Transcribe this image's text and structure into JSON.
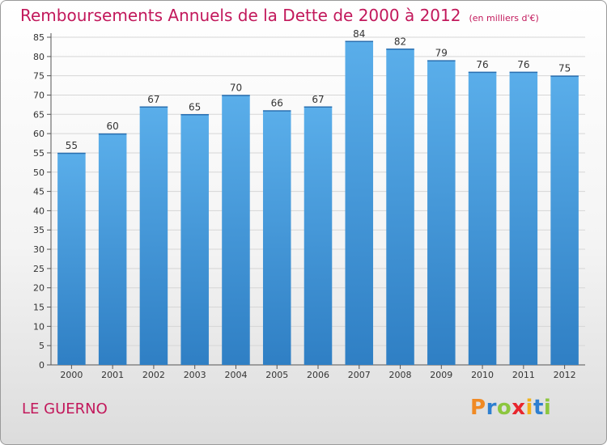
{
  "chart_data": {
    "type": "bar",
    "title": "Remboursements Annuels de la Dette de 2000 à 2012",
    "subtitle": "(en milliers d'€)",
    "xlabel": "",
    "ylabel": "",
    "categories": [
      "2000",
      "2001",
      "2002",
      "2003",
      "2004",
      "2005",
      "2006",
      "2007",
      "2008",
      "2009",
      "2010",
      "2011",
      "2012"
    ],
    "values": [
      55,
      60,
      67,
      65,
      70,
      66,
      67,
      84,
      82,
      79,
      76,
      76,
      75
    ],
    "ylim": [
      0,
      85
    ],
    "yticks": [
      0,
      5,
      10,
      15,
      20,
      25,
      30,
      35,
      40,
      45,
      50,
      55,
      60,
      65,
      70,
      75,
      80,
      85
    ],
    "grid": true,
    "legend": "none",
    "colors": {
      "bar_top": "#5aaeea",
      "bar_bottom": "#2f7fc4",
      "title": "#c2185b"
    }
  },
  "footer": {
    "commune": "LE GUERNO"
  },
  "logo": {
    "letters": [
      "P",
      "r",
      "o",
      "x",
      "i",
      "t",
      "i"
    ],
    "colors": [
      "#f08a24",
      "#2e7fd0",
      "#8cc63e",
      "#e8262d",
      "#f2b21b",
      "#2e7fd0",
      "#8cc63e"
    ]
  }
}
